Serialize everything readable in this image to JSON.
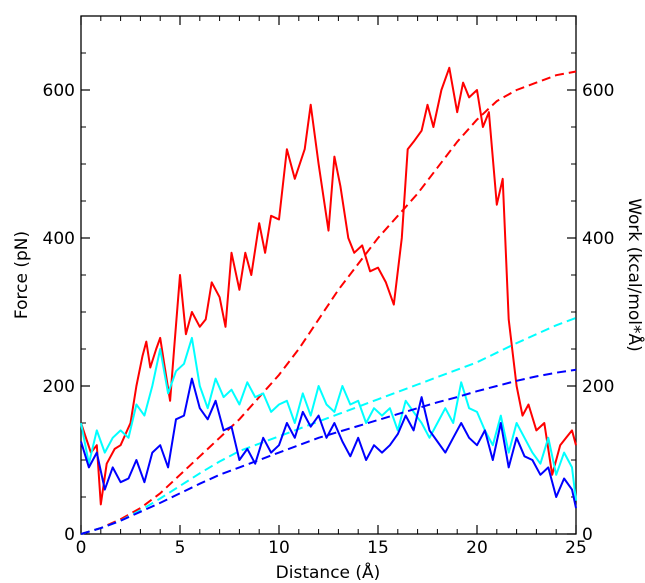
{
  "chart_data": {
    "type": "line",
    "xlabel": "Distance (Å)",
    "ylabel": "Force (pN)",
    "y2label": "Work (kcal/mol*Å)",
    "xlim": [
      0,
      25
    ],
    "ylim": [
      0,
      700
    ],
    "y2lim": [
      0,
      700
    ],
    "xticks": [
      0,
      5,
      10,
      15,
      20,
      25
    ],
    "yticks": [
      0,
      200,
      400,
      600
    ],
    "y2ticks": [
      0,
      200,
      400,
      600
    ],
    "grid": false,
    "legend": "none",
    "series": [
      {
        "axis": "left",
        "color": "#ff0000",
        "style": "solid",
        "x": [
          0,
          0.5,
          0.8,
          1.0,
          1.3,
          1.7,
          2.0,
          2.5,
          2.8,
          3.1,
          3.3,
          3.5,
          3.8,
          4.0,
          4.2,
          4.5,
          4.7,
          5.0,
          5.3,
          5.6,
          6.0,
          6.3,
          6.6,
          7.0,
          7.3,
          7.6,
          8.0,
          8.3,
          8.6,
          9.0,
          9.3,
          9.6,
          10.0,
          10.4,
          10.8,
          11.3,
          11.6,
          12.0,
          12.5,
          12.8,
          13.1,
          13.5,
          13.8,
          14.2,
          14.6,
          15.0,
          15.4,
          15.8,
          16.2,
          16.5,
          16.8,
          17.2,
          17.5,
          17.8,
          18.2,
          18.6,
          19.0,
          19.3,
          19.6,
          20.0,
          20.3,
          20.6,
          21.0,
          21.3,
          21.6,
          22.0,
          22.3,
          22.6,
          23.0,
          23.4,
          23.8,
          24.2,
          24.5,
          24.8,
          25.0
        ],
        "y": [
          150,
          110,
          120,
          40,
          95,
          115,
          120,
          150,
          200,
          240,
          260,
          225,
          250,
          265,
          230,
          180,
          250,
          350,
          270,
          300,
          280,
          290,
          340,
          320,
          280,
          380,
          330,
          380,
          350,
          420,
          380,
          430,
          425,
          520,
          480,
          520,
          580,
          500,
          410,
          510,
          470,
          400,
          380,
          390,
          355,
          360,
          340,
          310,
          400,
          520,
          530,
          545,
          580,
          550,
          600,
          630,
          570,
          610,
          590,
          600,
          550,
          570,
          445,
          480,
          290,
          200,
          160,
          175,
          140,
          150,
          80,
          120,
          130,
          140,
          120
        ]
      },
      {
        "axis": "right",
        "color": "#ff0000",
        "style": "dashed",
        "x": [
          0,
          1,
          2,
          3,
          4,
          5,
          6,
          7,
          8,
          9,
          10,
          11,
          12,
          13,
          14,
          15,
          16,
          17,
          18,
          19,
          20,
          21,
          22,
          23,
          24,
          25
        ],
        "y": [
          0,
          8,
          20,
          35,
          55,
          80,
          105,
          130,
          155,
          185,
          215,
          250,
          290,
          330,
          365,
          400,
          430,
          460,
          495,
          530,
          560,
          585,
          600,
          610,
          620,
          625
        ]
      },
      {
        "axis": "left",
        "color": "#00ffff",
        "style": "solid",
        "x": [
          0,
          0.4,
          0.8,
          1.2,
          1.6,
          2.0,
          2.4,
          2.8,
          3.2,
          3.6,
          4.0,
          4.4,
          4.8,
          5.2,
          5.6,
          6.0,
          6.4,
          6.8,
          7.2,
          7.6,
          8.0,
          8.4,
          8.8,
          9.2,
          9.6,
          10.0,
          10.4,
          10.8,
          11.2,
          11.6,
          12.0,
          12.4,
          12.8,
          13.2,
          13.6,
          14.0,
          14.4,
          14.8,
          15.2,
          15.6,
          16.0,
          16.4,
          16.8,
          17.2,
          17.6,
          18.0,
          18.4,
          18.8,
          19.2,
          19.6,
          20.0,
          20.4,
          20.8,
          21.2,
          21.6,
          22.0,
          22.4,
          22.8,
          23.2,
          23.6,
          24.0,
          24.4,
          24.8,
          25.0
        ],
        "y": [
          150,
          95,
          140,
          110,
          130,
          140,
          130,
          175,
          160,
          200,
          250,
          190,
          220,
          230,
          265,
          200,
          170,
          210,
          185,
          195,
          175,
          205,
          185,
          190,
          165,
          175,
          180,
          150,
          190,
          160,
          200,
          175,
          165,
          200,
          175,
          180,
          150,
          170,
          160,
          170,
          140,
          180,
          165,
          150,
          130,
          150,
          170,
          150,
          205,
          170,
          165,
          140,
          120,
          160,
          110,
          150,
          130,
          110,
          95,
          130,
          80,
          110,
          90,
          45
        ]
      },
      {
        "axis": "right",
        "color": "#00ffff",
        "style": "dashed",
        "x": [
          0,
          1,
          2,
          3,
          4,
          5,
          6,
          7,
          8,
          9,
          10,
          11,
          12,
          13,
          14,
          15,
          16,
          17,
          18,
          19,
          20,
          21,
          22,
          23,
          24,
          25
        ],
        "y": [
          0,
          8,
          18,
          32,
          48,
          65,
          82,
          98,
          112,
          122,
          132,
          142,
          152,
          162,
          172,
          182,
          192,
          202,
          212,
          222,
          232,
          245,
          258,
          270,
          282,
          292
        ]
      },
      {
        "axis": "left",
        "color": "#0000ff",
        "style": "solid",
        "x": [
          0,
          0.4,
          0.8,
          1.2,
          1.6,
          2.0,
          2.4,
          2.8,
          3.2,
          3.6,
          4.0,
          4.4,
          4.8,
          5.2,
          5.6,
          6.0,
          6.4,
          6.8,
          7.2,
          7.6,
          8.0,
          8.4,
          8.8,
          9.2,
          9.6,
          10.0,
          10.4,
          10.8,
          11.2,
          11.6,
          12.0,
          12.4,
          12.8,
          13.2,
          13.6,
          14.0,
          14.4,
          14.8,
          15.2,
          15.6,
          16.0,
          16.4,
          16.8,
          17.2,
          17.6,
          18.0,
          18.4,
          18.8,
          19.2,
          19.6,
          20.0,
          20.4,
          20.8,
          21.2,
          21.6,
          22.0,
          22.4,
          22.8,
          23.2,
          23.6,
          24.0,
          24.4,
          24.8,
          25.0
        ],
        "y": [
          125,
          90,
          110,
          60,
          90,
          70,
          75,
          100,
          70,
          110,
          120,
          90,
          155,
          160,
          210,
          170,
          155,
          180,
          140,
          145,
          100,
          115,
          95,
          130,
          110,
          120,
          150,
          130,
          165,
          145,
          160,
          130,
          150,
          125,
          105,
          130,
          100,
          120,
          110,
          120,
          135,
          160,
          140,
          185,
          140,
          125,
          110,
          130,
          150,
          130,
          120,
          140,
          100,
          150,
          90,
          130,
          105,
          100,
          80,
          90,
          50,
          75,
          60,
          35
        ]
      },
      {
        "axis": "right",
        "color": "#0000ff",
        "style": "dashed",
        "x": [
          0,
          1,
          2,
          3,
          4,
          5,
          6,
          7,
          8,
          9,
          10,
          11,
          12,
          13,
          14,
          15,
          16,
          17,
          18,
          19,
          20,
          21,
          22,
          23,
          24,
          25
        ],
        "y": [
          0,
          8,
          18,
          30,
          42,
          55,
          68,
          80,
          90,
          100,
          110,
          120,
          130,
          138,
          146,
          154,
          162,
          170,
          178,
          185,
          193,
          200,
          207,
          213,
          218,
          222
        ]
      }
    ]
  }
}
